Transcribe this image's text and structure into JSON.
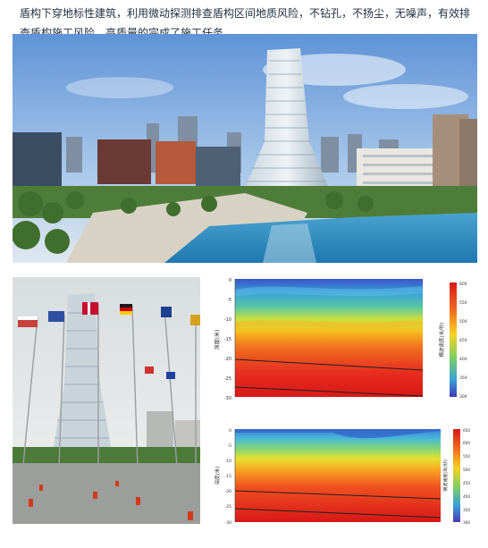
{
  "paragraph": {
    "text": "盾构下穿地标性建筑，利用微动探测排查盾构区间地质风险，不钻孔，不扬尘，无噪声，有效排查盾构施工风险，高质量的完成了施工任务。"
  },
  "chart_data": [
    {
      "type": "heatmap",
      "title": "",
      "ylabel": "深度(米)",
      "colorbar_label": "横波速度(米/秒)",
      "yticks": [
        "0",
        "-5",
        "-10",
        "-15",
        "-20",
        "-25",
        "-30"
      ],
      "ylim": [
        -30,
        0
      ],
      "colorbar_ticks": [
        "600",
        "550",
        "500",
        "450",
        "400",
        "350",
        "300"
      ],
      "colorbar_range": [
        300,
        600
      ],
      "boundaries": [
        {
          "name": "",
          "depths": [
            -20.5,
            -23.2
          ]
        },
        {
          "name": "",
          "depths": [
            -27.5,
            -29.8
          ]
        }
      ]
    },
    {
      "type": "heatmap",
      "title": "",
      "ylabel": "深度(米)",
      "colorbar_label": "横波速度(米/秒)",
      "yticks": [
        "0",
        "-5",
        "-10",
        "-15",
        "-20",
        "-25",
        "-30"
      ],
      "ylim": [
        -30,
        0
      ],
      "colorbar_ticks": [
        "650",
        "600",
        "550",
        "500",
        "450",
        "400",
        "350",
        "300"
      ],
      "colorbar_range": [
        300,
        650
      ],
      "boundaries": [
        {
          "name": "",
          "depths": [
            -20.0,
            -23.0
          ]
        },
        {
          "name": "",
          "depths": [
            -25.5,
            -28.5
          ]
        }
      ]
    }
  ]
}
